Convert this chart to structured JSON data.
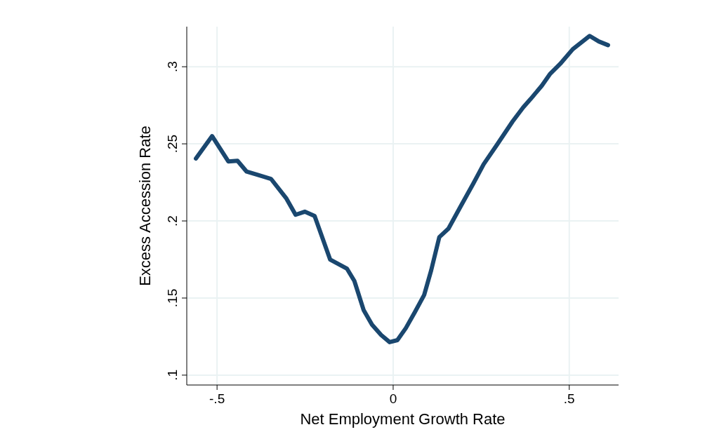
{
  "chart_data": {
    "type": "line",
    "xlabel": "Net Employment Growth Rate",
    "ylabel": "Excess Accession Rate",
    "x": [
      -0.56,
      -0.514,
      -0.468,
      -0.442,
      -0.416,
      -0.386,
      -0.347,
      -0.303,
      -0.277,
      -0.251,
      -0.223,
      -0.179,
      -0.131,
      -0.11,
      -0.084,
      -0.06,
      -0.034,
      -0.01,
      0.012,
      0.036,
      0.062,
      0.088,
      0.108,
      0.131,
      0.157,
      0.193,
      0.227,
      0.257,
      0.295,
      0.339,
      0.369,
      0.39,
      0.422,
      0.446,
      0.474,
      0.51,
      0.558,
      0.584,
      0.61
    ],
    "series": [
      {
        "color": "#1a476f",
        "values": [
          0.2405,
          0.255,
          0.2386,
          0.239,
          0.232,
          0.23,
          0.2273,
          0.2145,
          0.204,
          0.206,
          0.2032,
          0.175,
          0.169,
          0.161,
          0.1423,
          0.1327,
          0.126,
          0.1214,
          0.1227,
          0.1305,
          0.141,
          0.152,
          0.168,
          0.1895,
          0.195,
          0.21,
          0.224,
          0.2368,
          0.2495,
          0.2645,
          0.2736,
          0.279,
          0.2877,
          0.2955,
          0.3018,
          0.3114,
          0.32,
          0.3164,
          0.314
        ]
      }
    ],
    "xlim": [
      -0.586,
      0.64
    ],
    "ylim": [
      0.0936,
      0.326
    ],
    "xticks": [
      {
        "value": -0.5,
        "label": "-.5"
      },
      {
        "value": 0,
        "label": "0"
      },
      {
        "value": 0.5,
        "label": ".5"
      }
    ],
    "yticks": [
      {
        "value": 0.1,
        "label": ".1"
      },
      {
        "value": 0.15,
        "label": ".15"
      },
      {
        "value": 0.2,
        "label": ".2"
      },
      {
        "value": 0.25,
        "label": ".25"
      },
      {
        "value": 0.3,
        "label": ".3"
      }
    ],
    "grid": true,
    "line_style": "solid",
    "marker": "none"
  }
}
